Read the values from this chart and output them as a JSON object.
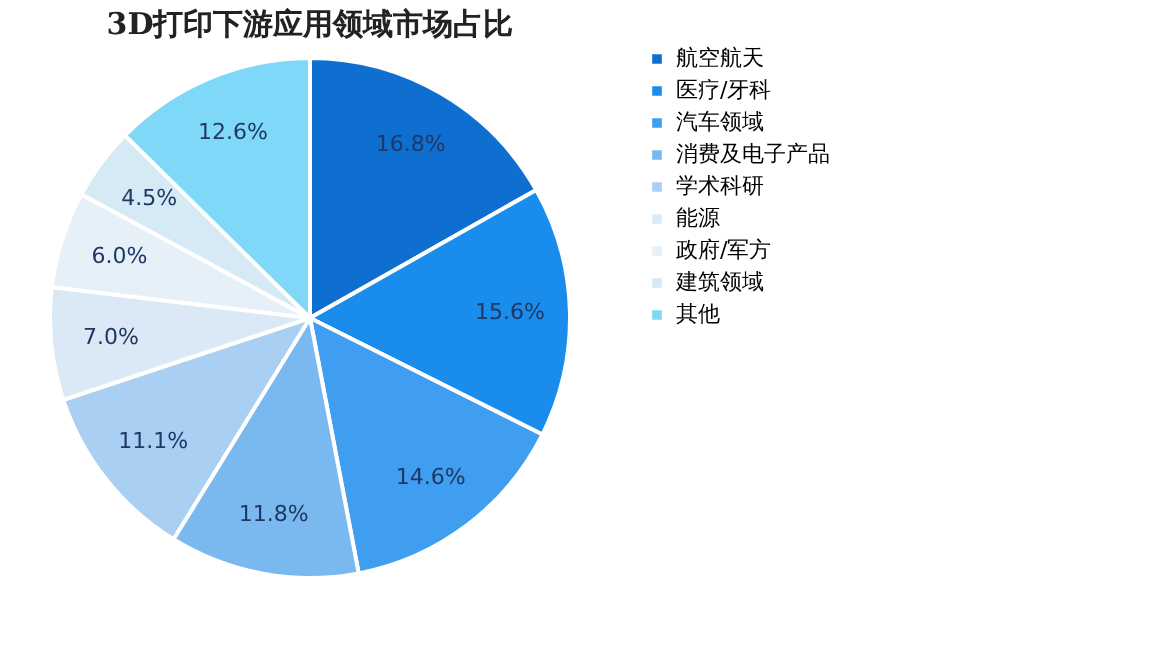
{
  "chart_data": {
    "type": "pie",
    "title": "3D打印下游应用领域市场占比",
    "categories": [
      "航空航天",
      "医疗/牙科",
      "汽车领域",
      "消费及电子产品",
      "学术科研",
      "能源",
      "政府/军方",
      "建筑领域",
      "其他"
    ],
    "values": [
      16.8,
      15.6,
      14.6,
      11.8,
      11.1,
      7.0,
      6.0,
      4.5,
      12.6
    ],
    "value_labels": [
      "16.8%",
      "15.6%",
      "14.6%",
      "11.8%",
      "11.1%",
      "7.0%",
      "6.0%",
      "4.5%",
      "12.6%"
    ],
    "colors": [
      "#0f6fd0",
      "#1a8ceb",
      "#3f9ef0",
      "#7ab8f0",
      "#a9cff3",
      "#dbe9f6",
      "#e5f0f8",
      "#d6eaf6",
      "#7fd8f8"
    ],
    "legend": "right"
  }
}
